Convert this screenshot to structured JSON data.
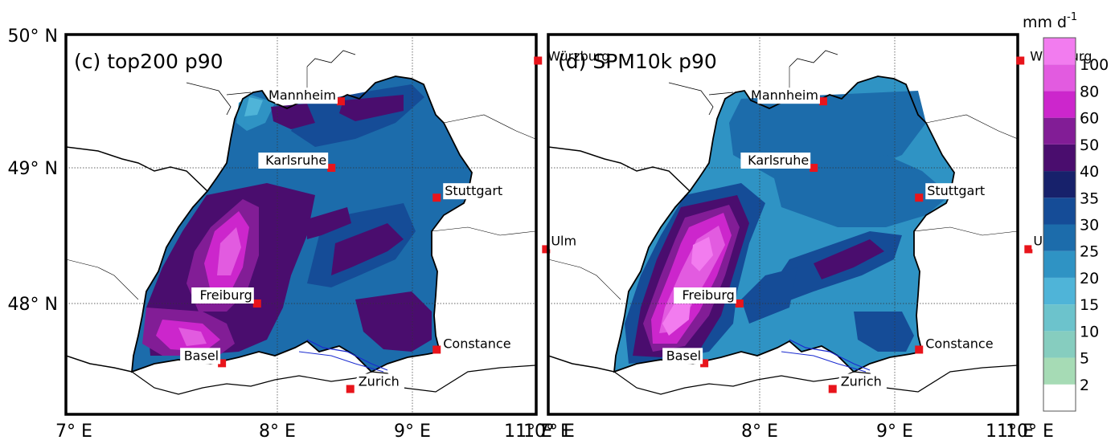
{
  "panels": [
    {
      "id": "c",
      "title": "(c) top200 p90",
      "lon_ticks": [
        "7° E",
        "8° E",
        "9° E",
        "10° E",
        "11° E"
      ],
      "lat_ticks": [
        "50° N",
        "49° N",
        "48° N"
      ]
    },
    {
      "id": "d",
      "title": "(d) SPM10k p90",
      "lon_ticks": [
        "7° E",
        "8° E",
        "9° E",
        "10° E",
        "11° E"
      ],
      "lat_ticks": []
    }
  ],
  "map_extent": {
    "lon": [
      7,
      11
    ],
    "lat": [
      47.2,
      50
    ]
  },
  "cities": [
    {
      "name": "Würzburg",
      "lon": 9.93,
      "lat": 49.79
    },
    {
      "name": "Mannheim",
      "lon": 8.47,
      "lat": 49.49
    },
    {
      "name": "Karlsruhe",
      "lon": 8.4,
      "lat": 49.0
    },
    {
      "name": "Stuttgart",
      "lon": 9.18,
      "lat": 48.78
    },
    {
      "name": "Ulm",
      "lon": 9.99,
      "lat": 48.4
    },
    {
      "name": "Freiburg",
      "lon": 7.85,
      "lat": 48.0
    },
    {
      "name": "Basel",
      "lon": 7.59,
      "lat": 47.56
    },
    {
      "name": "Constance",
      "lon": 9.18,
      "lat": 47.66
    },
    {
      "name": "Zurich",
      "lon": 8.54,
      "lat": 47.37
    }
  ],
  "colorbar": {
    "unit": "mm d",
    "unit_exp": "-1",
    "levels": [
      "2",
      "5",
      "10",
      "15",
      "20",
      "25",
      "30",
      "35",
      "40",
      "50",
      "60",
      "80",
      "100"
    ],
    "colors": [
      "#ffffff",
      "#a6dbb5",
      "#86cdbf",
      "#6cc3cc",
      "#4fb4d8",
      "#2f93c4",
      "#1c6cab",
      "#154c97",
      "#17216b",
      "#4a0d6e",
      "#821d96",
      "#cc26cc",
      "#e25be0",
      "#f27cef"
    ]
  }
}
